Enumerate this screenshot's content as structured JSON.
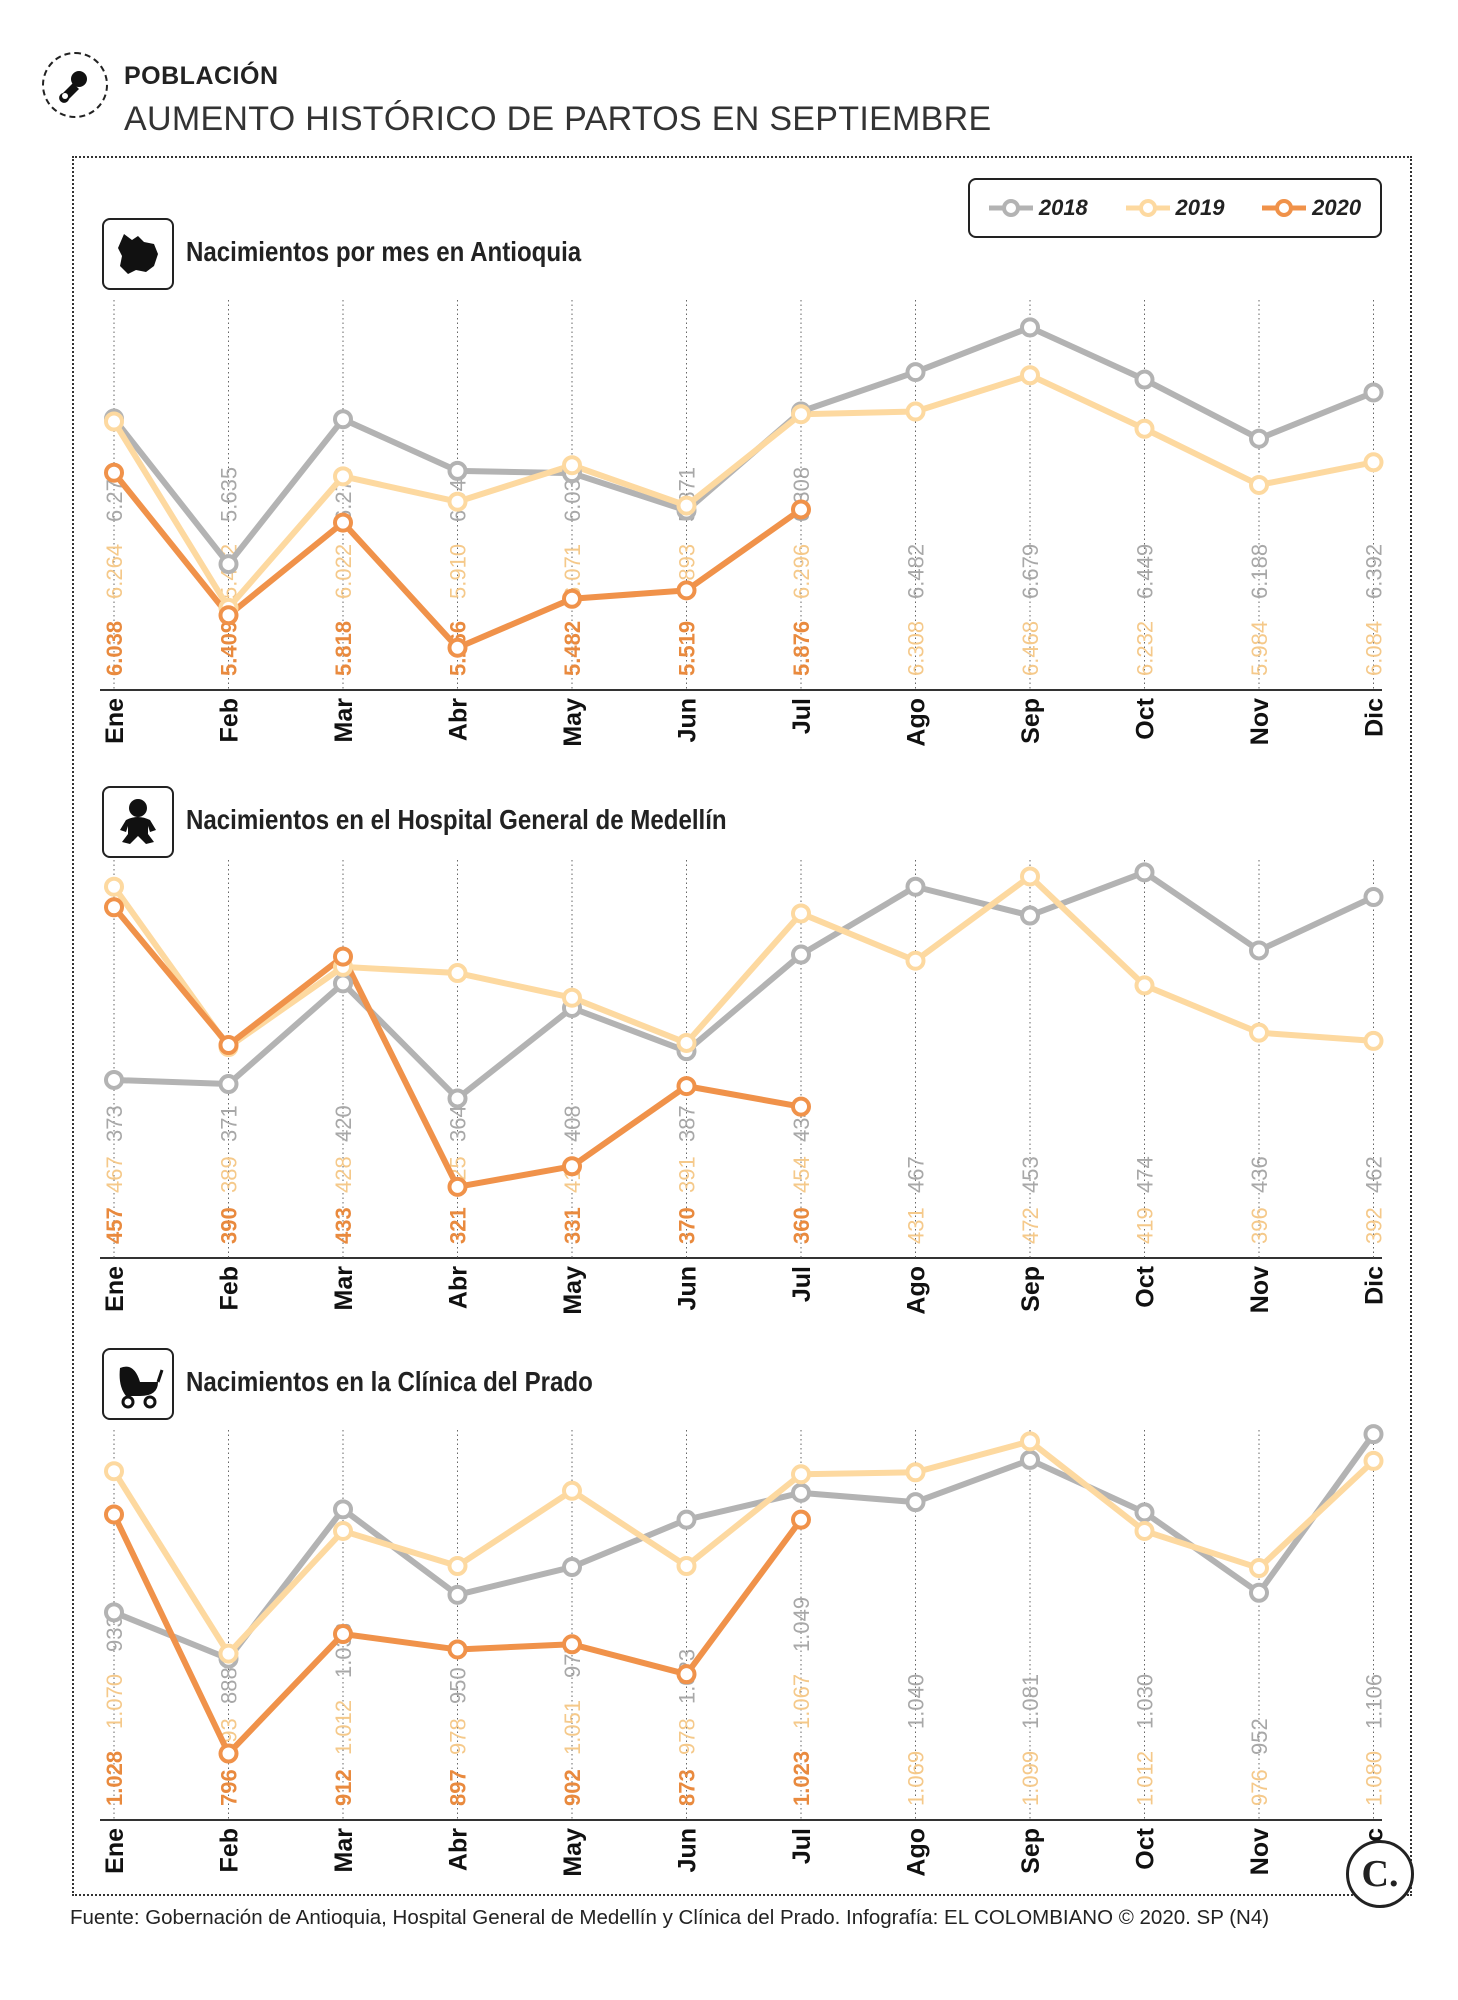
{
  "header": {
    "kicker": "POBLACIÓN",
    "headline": "AUMENTO HISTÓRICO DE PARTOS EN SEPTIEMBRE"
  },
  "icons": {
    "header": "pacifier-icon",
    "panel1": "antioquia-map-icon",
    "panel2": "baby-icon",
    "panel3": "baby-stroller-icon"
  },
  "legend": {
    "items": [
      {
        "label": "2018",
        "color": "#b3b3b3"
      },
      {
        "label": "2019",
        "color": "#fdd9a0"
      },
      {
        "label": "2020",
        "color": "#f0924a"
      }
    ]
  },
  "footer": {
    "source": "Fuente: Gobernación de Antioquia, Hospital General de Medellín y Clínica del Prado. Infografía: EL COLOMBIANO © 2020. SP (N4)",
    "logo": "C."
  },
  "chart_data": [
    {
      "type": "line",
      "title": "Nacimientos por mes en Antioquia",
      "categories": [
        "Ene",
        "Feb",
        "Mar",
        "Abr",
        "May",
        "Jun",
        "Jul",
        "Ago",
        "Sep",
        "Oct",
        "Nov",
        "Dic"
      ],
      "ylim": [
        5300,
        6800
      ],
      "series": [
        {
          "name": "2018",
          "color": "#b3b3b3",
          "values": [
            6277,
            5635,
            6274,
            6046,
            6036,
            5871,
            6308,
            6482,
            6679,
            6449,
            6188,
            6392
          ],
          "labels": [
            "6.277",
            "5.635",
            "6.274",
            "6.046",
            "6.036",
            "5.871",
            "6.308",
            "6.482",
            "6.679",
            "6.449",
            "6.188",
            "6.392"
          ]
        },
        {
          "name": "2019",
          "color": "#fdd9a0",
          "values": [
            6264,
            5442,
            6022,
            5910,
            6071,
            5893,
            6296,
            6308,
            6468,
            6232,
            5984,
            6084
          ],
          "labels": [
            "6.264",
            "5.442",
            "6.022",
            "5.910",
            "6.071",
            "5.893",
            "6.296",
            "6.308",
            "6.468",
            "6.232",
            "5.984",
            "6.084"
          ]
        },
        {
          "name": "2020",
          "color": "#f0924a",
          "values": [
            6038,
            5409,
            5818,
            5266,
            5482,
            5519,
            5876,
            null,
            null,
            null,
            null,
            null
          ],
          "labels": [
            "6.038",
            "5.409",
            "5.818",
            "5.266",
            "5.482",
            "5.519",
            "5.876",
            "",
            "",
            "",
            "",
            ""
          ]
        }
      ]
    },
    {
      "type": "line",
      "title": "Nacimientos en el Hospital General de Medellín",
      "categories": [
        "Ene",
        "Feb",
        "Mar",
        "Abr",
        "May",
        "Jun",
        "Jul",
        "Ago",
        "Sep",
        "Oct",
        "Nov",
        "Dic"
      ],
      "ylim": [
        300,
        480
      ],
      "series": [
        {
          "name": "2018",
          "color": "#b3b3b3",
          "values": [
            373,
            371,
            420,
            364,
            408,
            387,
            434,
            467,
            453,
            474,
            436,
            462
          ],
          "labels": [
            "373",
            "371",
            "420",
            "364",
            "408",
            "387",
            "434",
            "467",
            "453",
            "474",
            "436",
            "462"
          ]
        },
        {
          "name": "2019",
          "color": "#fdd9a0",
          "values": [
            467,
            389,
            428,
            425,
            413,
            391,
            454,
            431,
            472,
            419,
            396,
            392
          ],
          "labels": [
            "467",
            "389",
            "428",
            "425",
            "413",
            "391",
            "454",
            "431",
            "472",
            "419",
            "396",
            "392"
          ]
        },
        {
          "name": "2020",
          "color": "#f0924a",
          "values": [
            457,
            390,
            433,
            321,
            331,
            370,
            360,
            null,
            null,
            null,
            null,
            null
          ],
          "labels": [
            "457",
            "390",
            "433",
            "321",
            "331",
            "370",
            "360",
            "",
            "",
            "",
            "",
            ""
          ]
        }
      ]
    },
    {
      "type": "line",
      "title": "Nacimientos en la Clínica del Prado",
      "categories": [
        "Ene",
        "Feb",
        "Mar",
        "Abr",
        "May",
        "Jun",
        "Jul",
        "Ago",
        "Sep",
        "Oct",
        "Nov",
        "Dic"
      ],
      "ylim": [
        780,
        1110
      ],
      "series": [
        {
          "name": "2018",
          "color": "#b3b3b3",
          "values": [
            933,
            888,
            1033,
            950,
            977,
            1023,
            1049,
            1040,
            1081,
            1030,
            952,
            1106
          ],
          "labels": [
            "933",
            "888",
            "1.033",
            "950",
            "977",
            "1.023",
            "1.049",
            "1.040",
            "1.081",
            "1.030",
            "952",
            "1.106"
          ]
        },
        {
          "name": "2019",
          "color": "#fdd9a0",
          "values": [
            1070,
            893,
            1012,
            978,
            1051,
            978,
            1067,
            1069,
            1099,
            1012,
            976,
            1080
          ],
          "labels": [
            "1.070",
            "893",
            "1.012",
            "978",
            "1.051",
            "978",
            "1.067",
            "1.069",
            "1.099",
            "1.012",
            "976",
            "1.080"
          ]
        },
        {
          "name": "2020",
          "color": "#f0924a",
          "values": [
            1028,
            796,
            912,
            897,
            902,
            873,
            1023,
            null,
            null,
            null,
            null,
            null
          ],
          "labels": [
            "1.028",
            "796",
            "912",
            "897",
            "902",
            "873",
            "1.023",
            "",
            "",
            "",
            "",
            ""
          ]
        }
      ]
    }
  ]
}
